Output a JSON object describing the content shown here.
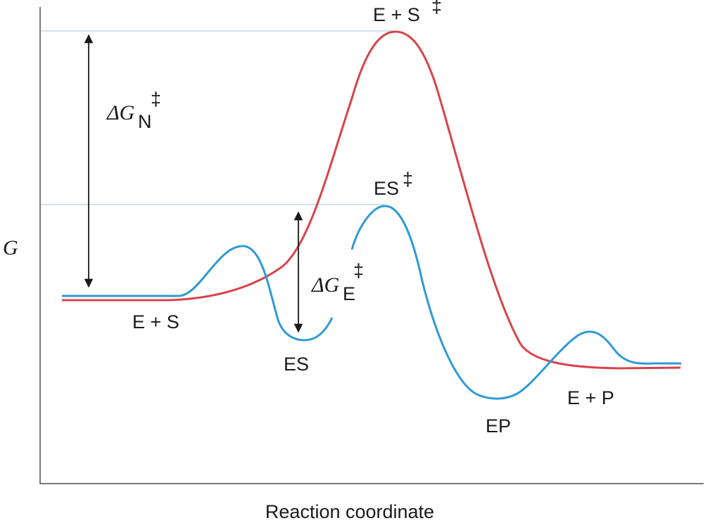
{
  "axes": {
    "y_label": "G",
    "x_label": "Reaction coordinate"
  },
  "states": {
    "e_plus_s": "E + S",
    "es": "ES",
    "ep": "EP",
    "e_plus_p": "E + P",
    "uncatalyzed_ts": "E + S",
    "catalyzed_ts": "ES",
    "double_dagger": "‡"
  },
  "barriers": {
    "uncatalyzed": {
      "delta": "ΔG",
      "sub": "N",
      "sup": "‡"
    },
    "catalyzed": {
      "delta": "ΔG",
      "sub": "E",
      "sup": "‡"
    }
  },
  "colors": {
    "uncatalyzed_curve": "#d8434b",
    "catalyzed_curve": "#2f9ad4",
    "axis": "#7a7a7a",
    "guide_line": "#cfe3ea",
    "arrow": "#1a1a1a"
  }
}
